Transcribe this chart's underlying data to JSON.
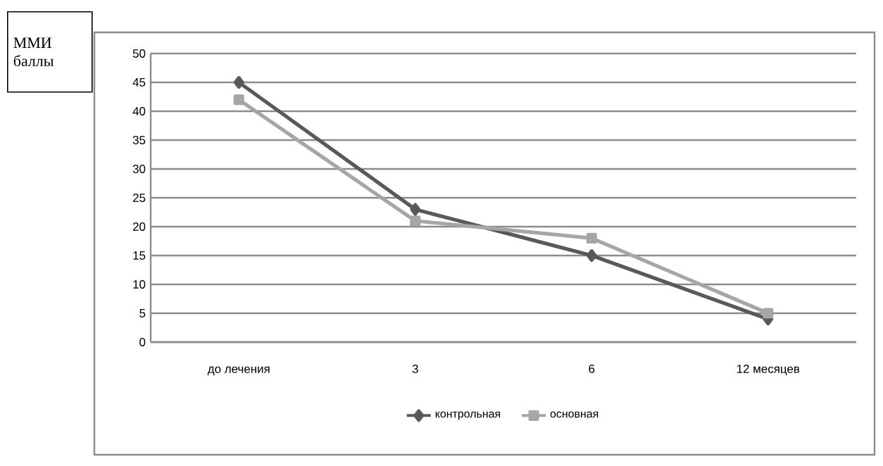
{
  "chart_data": {
    "type": "line",
    "annotations": [
      "ММИ баллы"
    ],
    "categories": [
      "до лечения",
      "3",
      "6",
      "12 месяцев"
    ],
    "series": [
      {
        "name": "контрольная",
        "color": "#595959",
        "marker": "diamond",
        "values": [
          45,
          23,
          15,
          4
        ]
      },
      {
        "name": "основная",
        "color": "#a6a6a6",
        "marker": "square",
        "values": [
          42,
          21,
          18,
          5
        ]
      }
    ],
    "ylim": [
      0,
      50
    ],
    "yticks": [
      0,
      5,
      10,
      15,
      20,
      25,
      30,
      35,
      40,
      45,
      50
    ],
    "grid": "y",
    "legend": "bottom"
  }
}
